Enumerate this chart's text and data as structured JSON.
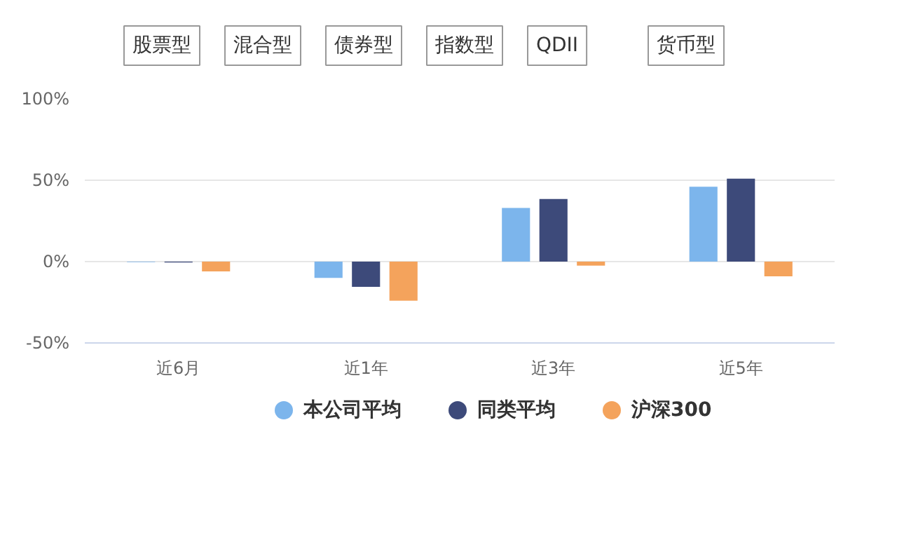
{
  "chart_data": {
    "type": "bar",
    "annotations": [
      "股票型",
      "混合型",
      "债券型",
      "指数型",
      "QDII",
      "货币型"
    ],
    "categories": [
      "近6月",
      "近1年",
      "近3年",
      "近5年"
    ],
    "series": [
      {
        "name": "本公司平均",
        "color": "#7cb5ec",
        "values": [
          -0.3,
          -10,
          33,
          46
        ]
      },
      {
        "name": "同类平均",
        "color": "#3d4a7a",
        "values": [
          -0.5,
          -15.5,
          38.5,
          51
        ]
      },
      {
        "name": "沪深300",
        "color": "#f4a35c",
        "values": [
          -6,
          -24,
          -2.5,
          -9
        ]
      }
    ],
    "ylim": [
      -50,
      100
    ],
    "yticks": [
      {
        "value": -50,
        "label": "-50%"
      },
      {
        "value": 0,
        "label": "0%"
      },
      {
        "value": 50,
        "label": "50%"
      },
      {
        "value": 100,
        "label": "100%"
      }
    ],
    "grid": "y",
    "legend": "bottom"
  }
}
